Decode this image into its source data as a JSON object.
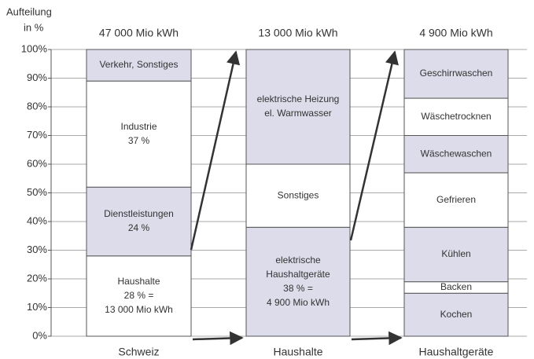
{
  "chart_data": {
    "type": "stacked_bar",
    "axis_label": [
      "Aufteilung",
      "in %"
    ],
    "ylim": [
      0,
      100
    ],
    "yticks": [
      {
        "value": 0,
        "label": "0%"
      },
      {
        "value": 10,
        "label": "10%"
      },
      {
        "value": 20,
        "label": "20%"
      },
      {
        "value": 30,
        "label": "30%"
      },
      {
        "value": 40,
        "label": "40%"
      },
      {
        "value": 50,
        "label": "50%"
      },
      {
        "value": 60,
        "label": "60%"
      },
      {
        "value": 70,
        "label": "70%"
      },
      {
        "value": 80,
        "label": "80%"
      },
      {
        "value": 90,
        "label": "90%"
      },
      {
        "value": 100,
        "label": "100%"
      }
    ],
    "grid": true,
    "bars": [
      {
        "category": "Schweiz",
        "total_label": "47 000 Mio kWh",
        "segments": [
          {
            "label": [
              "Haushalte",
              "28 % =",
              "13 000 Mio kWh"
            ],
            "value": 28,
            "color": "#ffffff"
          },
          {
            "label": [
              "Dienstleistungen",
              "24 %"
            ],
            "value": 24,
            "color": "#dcdcea"
          },
          {
            "label": [
              "Industrie",
              "37 %"
            ],
            "value": 37,
            "color": "#ffffff"
          },
          {
            "label": [
              "Verkehr, Sonstiges"
            ],
            "value": 11,
            "color": "#dcdcea"
          }
        ]
      },
      {
        "category": "Haushalte",
        "total_label": "13 000 Mio kWh",
        "segments": [
          {
            "label": [
              "elektrische",
              "Haushaltgeräte",
              "38 % =",
              "4 900 Mio kWh"
            ],
            "value": 38,
            "color": "#dcdcea"
          },
          {
            "label": [
              "Sonstiges"
            ],
            "value": 22,
            "color": "#ffffff"
          },
          {
            "label": [
              "elektrische Heizung",
              "el. Warmwasser"
            ],
            "value": 40,
            "color": "#dcdcea"
          }
        ]
      },
      {
        "category": "Haushaltgeräte",
        "total_label": "4 900 Mio kWh",
        "segments": [
          {
            "label": [
              "Kochen"
            ],
            "value": 15,
            "color": "#dcdcea"
          },
          {
            "label": [
              "Backen"
            ],
            "value": 4,
            "color": "#ffffff"
          },
          {
            "label": [
              "Kühlen"
            ],
            "value": 19,
            "color": "#dcdcea"
          },
          {
            "label": [
              "Gefrieren"
            ],
            "value": 19,
            "color": "#ffffff"
          },
          {
            "label": [
              "Wäschewaschen"
            ],
            "value": 13,
            "color": "#dcdcea"
          },
          {
            "label": [
              "Wäschetrocknen"
            ],
            "value": 13,
            "color": "#ffffff"
          },
          {
            "label": [
              "Geschirrwaschen"
            ],
            "value": 17,
            "color": "#dcdcea"
          }
        ]
      }
    ]
  }
}
